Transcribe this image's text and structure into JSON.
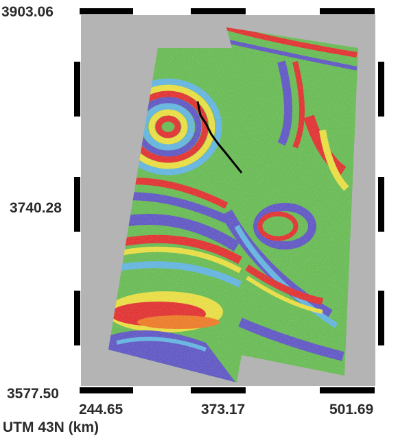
{
  "map": {
    "projection_label": "UTM 43N (km)",
    "y_ticks": [
      "3903.06",
      "3740.28",
      "3577.50"
    ],
    "x_ticks": [
      "244.65",
      "373.17",
      "501.69"
    ],
    "background_color": "#b4b4b4",
    "frame_colors": [
      "#000000",
      "#ffffff"
    ],
    "interferogram_colors": [
      "#5b51c8",
      "#5fb7e6",
      "#64be4e",
      "#f0e43c",
      "#f4781e",
      "#e82828"
    ],
    "fault_trace_color": "#000000"
  }
}
